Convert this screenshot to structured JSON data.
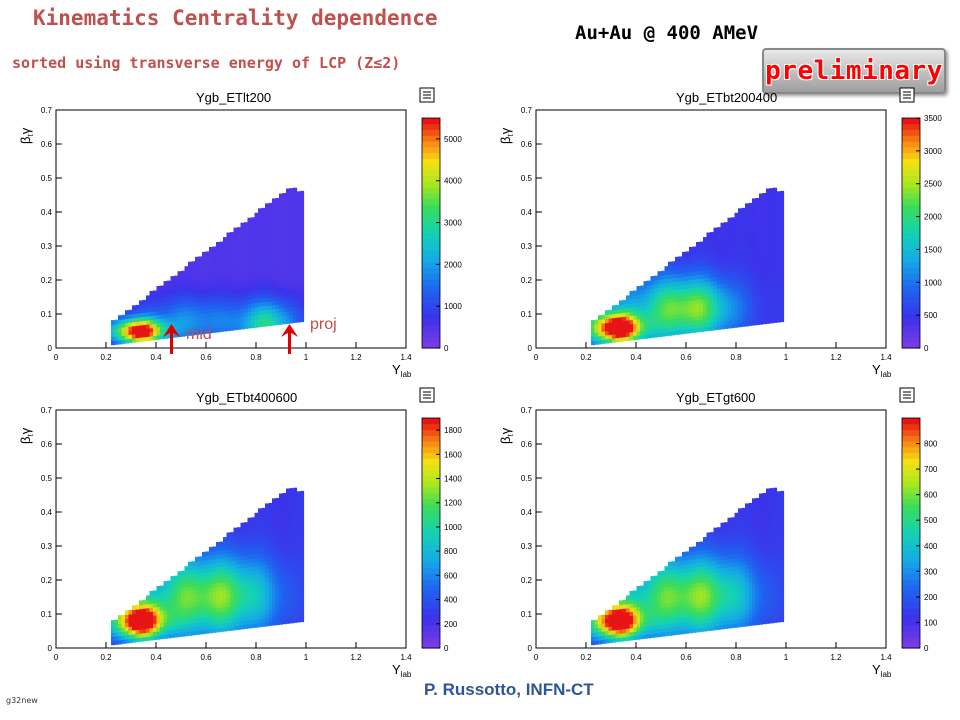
{
  "header": {
    "title": "Kinematics Centrality dependence",
    "subtitle": "sorted using transverse energy of LCP (Z≤2)",
    "system": "Au+Au  @ 400 AMeV",
    "badge": "preliminary"
  },
  "footer": {
    "author": "P. Russotto, INFN-CT",
    "corner_label": "g32new"
  },
  "annotations": {
    "mid": "mid",
    "proj": "proj"
  },
  "chart_data": [
    {
      "type": "heatmap",
      "title": "Ygb_ETlt200",
      "xlabel": "Y_lab",
      "ylabel": "β_tγ",
      "xlim": [
        0,
        1.4
      ],
      "ylim": [
        0,
        0.7
      ],
      "xticks": [
        0,
        0.2,
        0.4,
        0.6,
        0.8,
        1,
        1.2,
        1.4
      ],
      "yticks": [
        0,
        0.1,
        0.2,
        0.3,
        0.4,
        0.5,
        0.6,
        0.7
      ],
      "z_range": [
        0,
        5500
      ],
      "z_ticks": [
        0,
        1000,
        2000,
        3000,
        4000,
        5000
      ],
      "profile": "peripheral",
      "hot_spot": {
        "x": 0.33,
        "y": 0.05
      },
      "region": "y between ~0.02 and tan-slope up to ~0.45 at Y_lab~0.95; Y_lab 0.22-0.98"
    },
    {
      "type": "heatmap",
      "title": "Ygb_ETbt200400",
      "xlabel": "Y_lab",
      "ylabel": "β_tγ",
      "xlim": [
        0,
        1.4
      ],
      "ylim": [
        0,
        0.7
      ],
      "xticks": [
        0,
        0.2,
        0.4,
        0.6,
        0.8,
        1,
        1.2,
        1.4
      ],
      "yticks": [
        0,
        0.1,
        0.2,
        0.3,
        0.4,
        0.5,
        0.6,
        0.7
      ],
      "z_range": [
        0,
        3500
      ],
      "z_ticks": [
        0,
        500,
        1000,
        1500,
        2000,
        2500,
        3000,
        3500
      ],
      "profile": "semi",
      "hot_spot": {
        "x": 0.32,
        "y": 0.06
      },
      "region": "Y_lab 0.22-0.98"
    },
    {
      "type": "heatmap",
      "title": "Ygb_ETbt400600",
      "xlabel": "Y_lab",
      "ylabel": "β_tγ",
      "xlim": [
        0,
        1.4
      ],
      "ylim": [
        0,
        0.7
      ],
      "xticks": [
        0,
        0.2,
        0.4,
        0.6,
        0.8,
        1,
        1.2,
        1.4
      ],
      "yticks": [
        0,
        0.1,
        0.2,
        0.3,
        0.4,
        0.5,
        0.6,
        0.7
      ],
      "z_range": [
        0,
        1900
      ],
      "z_ticks": [
        0,
        200,
        400,
        600,
        800,
        1000,
        1200,
        1400,
        1600,
        1800
      ],
      "profile": "central",
      "hot_spot": {
        "x": 0.33,
        "y": 0.08
      },
      "region": "Y_lab 0.22-0.98"
    },
    {
      "type": "heatmap",
      "title": "Ygb_ETgt600",
      "xlabel": "Y_lab",
      "ylabel": "β_tγ",
      "xlim": [
        0,
        1.4
      ],
      "ylim": [
        0,
        0.7
      ],
      "xticks": [
        0,
        0.2,
        0.4,
        0.6,
        0.8,
        1,
        1.2,
        1.4
      ],
      "yticks": [
        0,
        0.1,
        0.2,
        0.3,
        0.4,
        0.5,
        0.6,
        0.7
      ],
      "z_range": [
        0,
        900
      ],
      "z_ticks": [
        0,
        100,
        200,
        300,
        400,
        500,
        600,
        700,
        800
      ],
      "profile": "central",
      "hot_spot": {
        "x": 0.32,
        "y": 0.08
      },
      "region": "Y_lab 0.22-0.98"
    }
  ]
}
